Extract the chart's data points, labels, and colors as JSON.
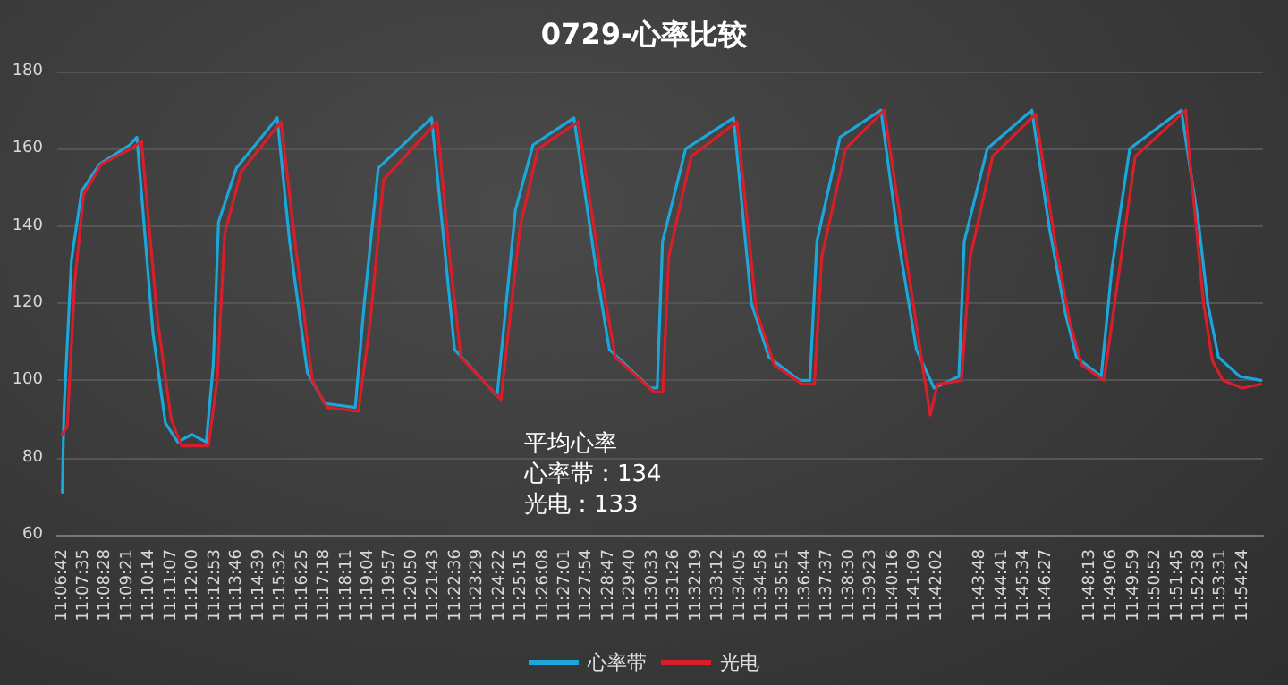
{
  "chart_data": {
    "type": "line",
    "title": "0729-心率比较",
    "annotations": [
      "平均心率",
      "心率带：134",
      "光电：133"
    ],
    "xlim": [
      11.1083,
      11.92
    ],
    "xticks": [
      {
        "value": 11.1117,
        "label": "11:06:42"
      },
      {
        "value": 11.1264,
        "label": "11:07:35"
      },
      {
        "value": 11.1411,
        "label": "11:08:28"
      },
      {
        "value": 11.1558,
        "label": "11:09:21"
      },
      {
        "value": 11.1706,
        "label": "11:10:14"
      },
      {
        "value": 11.1853,
        "label": "11:11:07"
      },
      {
        "value": 11.2,
        "label": "11:12:00"
      },
      {
        "value": 11.2147,
        "label": "11:12:53"
      },
      {
        "value": 11.2294,
        "label": "11:13:46"
      },
      {
        "value": 11.2442,
        "label": "11:14:39"
      },
      {
        "value": 11.2589,
        "label": "11:15:32"
      },
      {
        "value": 11.2736,
        "label": "11:16:25"
      },
      {
        "value": 11.2883,
        "label": "11:17:18"
      },
      {
        "value": 11.3031,
        "label": "11:18:11"
      },
      {
        "value": 11.3178,
        "label": "11:19:04"
      },
      {
        "value": 11.3325,
        "label": "11:19:57"
      },
      {
        "value": 11.3472,
        "label": "11:20:50"
      },
      {
        "value": 11.3619,
        "label": "11:21:43"
      },
      {
        "value": 11.3767,
        "label": "11:22:36"
      },
      {
        "value": 11.3914,
        "label": "11:23:29"
      },
      {
        "value": 11.4061,
        "label": "11:24:22"
      },
      {
        "value": 11.4208,
        "label": "11:25:15"
      },
      {
        "value": 11.4356,
        "label": "11:26:08"
      },
      {
        "value": 11.4503,
        "label": "11:27:01"
      },
      {
        "value": 11.465,
        "label": "11:27:54"
      },
      {
        "value": 11.4797,
        "label": "11:28:47"
      },
      {
        "value": 11.4944,
        "label": "11:29:40"
      },
      {
        "value": 11.5092,
        "label": "11:30:33"
      },
      {
        "value": 11.5239,
        "label": "11:31:26"
      },
      {
        "value": 11.5386,
        "label": "11:32:19"
      },
      {
        "value": 11.5533,
        "label": "11:33:12"
      },
      {
        "value": 11.5681,
        "label": "11:34:05"
      },
      {
        "value": 11.5828,
        "label": "11:34:58"
      },
      {
        "value": 11.5975,
        "label": "11:35:51"
      },
      {
        "value": 11.6122,
        "label": "11:36:44"
      },
      {
        "value": 11.6269,
        "label": "11:37:37"
      },
      {
        "value": 11.6417,
        "label": "11:38:30"
      },
      {
        "value": 11.6564,
        "label": "11:39:23"
      },
      {
        "value": 11.6711,
        "label": "11:40:16"
      },
      {
        "value": 11.6858,
        "label": "11:41:09"
      },
      {
        "value": 11.7006,
        "label": "11:42:02"
      },
      {
        "value": 11.73,
        "label": "11:43:48"
      },
      {
        "value": 11.7447,
        "label": "11:44:41"
      },
      {
        "value": 11.7594,
        "label": "11:45:34"
      },
      {
        "value": 11.7742,
        "label": "11:46:27"
      },
      {
        "value": 11.8036,
        "label": "11:48:13"
      },
      {
        "value": 11.8183,
        "label": "11:49:06"
      },
      {
        "value": 11.8331,
        "label": "11:49:59"
      },
      {
        "value": 11.8478,
        "label": "11:50:52"
      },
      {
        "value": 11.8625,
        "label": "11:51:45"
      },
      {
        "value": 11.8772,
        "label": "11:52:38"
      },
      {
        "value": 11.8919,
        "label": "11:53:31"
      },
      {
        "value": 11.9067,
        "label": "11:54:24"
      }
    ],
    "ylim": [
      60,
      180
    ],
    "yticks": [
      60,
      80,
      100,
      120,
      140,
      160,
      180
    ],
    "grid": "y",
    "legend": "bottom",
    "marker": "none",
    "line_style": "solid",
    "series": [
      {
        "name": "心率带",
        "color": "#1ca6d9",
        "x": [
          11.1117,
          11.1128,
          11.1178,
          11.1247,
          11.1367,
          11.1572,
          11.1619,
          11.1728,
          11.1811,
          11.1894,
          11.1989,
          11.2086,
          11.2133,
          11.2169,
          11.2289,
          11.2564,
          11.2647,
          11.2767,
          11.2886,
          11.3089,
          11.315,
          11.3244,
          11.3603,
          11.3686,
          11.3758,
          11.4044,
          11.4167,
          11.4286,
          11.4561,
          11.4714,
          11.48,
          11.5075,
          11.5122,
          11.5158,
          11.5314,
          11.5636,
          11.5756,
          11.5875,
          11.6078,
          11.615,
          11.6197,
          11.6353,
          11.6628,
          11.6747,
          11.6867,
          11.6986,
          11.7153,
          11.7189,
          11.7344,
          11.7644,
          11.7764,
          11.7872,
          11.7944,
          11.8111,
          11.8183,
          11.8303,
          11.865,
          11.8769,
          11.8828,
          11.89,
          11.9044,
          11.9186
        ],
        "values": [
          71,
          92,
          131,
          149,
          156,
          161,
          163,
          112,
          89,
          84,
          86,
          84,
          104,
          141,
          155,
          168,
          136,
          102,
          94,
          93,
          120,
          155,
          168,
          136,
          108,
          96,
          144,
          161,
          168,
          128,
          108,
          98,
          98,
          136,
          160,
          168,
          120,
          106,
          100,
          100,
          136,
          163,
          170,
          136,
          108,
          98,
          101,
          136,
          160,
          170,
          139,
          117,
          106,
          101,
          129,
          160,
          170,
          140,
          120,
          106,
          101,
          100
        ]
      },
      {
        "name": "光电",
        "color": "#d81e2a",
        "x": [
          11.1117,
          11.115,
          11.12,
          11.126,
          11.138,
          11.158,
          11.165,
          11.176,
          11.185,
          11.192,
          11.2,
          11.21,
          11.216,
          11.221,
          11.232,
          11.259,
          11.269,
          11.28,
          11.29,
          11.311,
          11.319,
          11.328,
          11.364,
          11.372,
          11.38,
          11.407,
          11.42,
          11.432,
          11.459,
          11.475,
          11.484,
          11.51,
          11.516,
          11.52,
          11.535,
          11.566,
          11.579,
          11.591,
          11.61,
          11.618,
          11.623,
          11.639,
          11.665,
          11.679,
          11.69,
          11.696,
          11.701,
          11.717,
          11.723,
          11.738,
          11.767,
          11.78,
          11.79,
          11.798,
          11.813,
          11.822,
          11.834,
          11.868,
          11.87,
          11.88,
          11.886,
          11.893,
          11.906,
          11.9186
        ],
        "values": [
          86,
          88,
          125,
          148,
          156,
          160,
          162,
          115,
          90,
          83,
          83,
          83,
          100,
          138,
          154,
          167,
          134,
          100,
          93,
          92,
          115,
          152,
          167,
          134,
          106,
          95,
          140,
          160,
          167,
          126,
          106,
          97,
          97,
          132,
          158,
          167,
          118,
          104,
          99,
          99,
          132,
          160,
          170,
          134,
          106,
          91,
          99,
          100,
          132,
          158,
          169,
          136,
          115,
          104,
          100,
          125,
          158,
          170,
          160,
          120,
          105,
          100,
          98,
          99
        ]
      }
    ]
  }
}
